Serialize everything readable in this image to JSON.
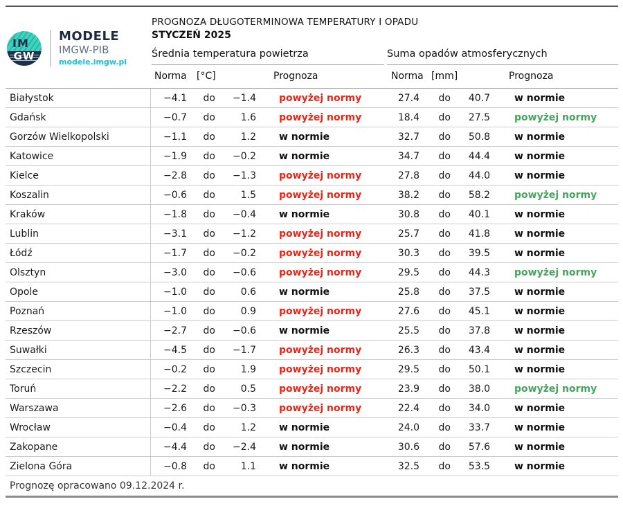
{
  "logo": {
    "circle_top": "IM",
    "circle_bottom": "GW",
    "brand": "MODELE",
    "subbrand": "IMGW-PIB",
    "url": "modele.imgw.pl"
  },
  "header": {
    "title": "PROGNOZA DŁUGOTERMINOWA TEMPERATURY I OPADU",
    "subtitle": "STYCZEŃ 2025",
    "temp_group": "Średnia temperatura powietrza",
    "precip_group": "Suma opadów atmosferycznych",
    "col_norma": "Norma",
    "col_temp_unit": "[°C]",
    "col_precip_unit": "[mm]",
    "col_prognoza": "Prognoza"
  },
  "labels": {
    "range_separator": "do",
    "above_norm": "powyżej normy",
    "in_norm": "w normie"
  },
  "colors": {
    "temp_above": "#ee2516",
    "precip_above": "#47a45e",
    "normal_forecast": "#111111",
    "teal": "#3ad6c1",
    "navy": "#1d2f49",
    "url_teal": "#14c4d9"
  },
  "table": {
    "rows": [
      {
        "city": "Białystok",
        "temp_min": "−4.1",
        "temp_max": "−1.4",
        "temp_forecast": "powyżej normy",
        "temp_status": "above",
        "precip_min": "27.4",
        "precip_max": "40.7",
        "precip_forecast": "w normie",
        "precip_status": "norm"
      },
      {
        "city": "Gdańsk",
        "temp_min": "−0.7",
        "temp_max": "1.6",
        "temp_forecast": "powyżej normy",
        "temp_status": "above",
        "precip_min": "18.4",
        "precip_max": "27.5",
        "precip_forecast": "powyżej normy",
        "precip_status": "above"
      },
      {
        "city": "Gorzów Wielkopolski",
        "temp_min": "−1.1",
        "temp_max": "1.2",
        "temp_forecast": "w normie",
        "temp_status": "norm",
        "precip_min": "32.7",
        "precip_max": "50.8",
        "precip_forecast": "w normie",
        "precip_status": "norm"
      },
      {
        "city": "Katowice",
        "temp_min": "−1.9",
        "temp_max": "−0.2",
        "temp_forecast": "w normie",
        "temp_status": "norm",
        "precip_min": "34.7",
        "precip_max": "44.4",
        "precip_forecast": "w normie",
        "precip_status": "norm"
      },
      {
        "city": "Kielce",
        "temp_min": "−2.8",
        "temp_max": "−1.3",
        "temp_forecast": "powyżej normy",
        "temp_status": "above",
        "precip_min": "27.8",
        "precip_max": "44.0",
        "precip_forecast": "w normie",
        "precip_status": "norm"
      },
      {
        "city": "Koszalin",
        "temp_min": "−0.6",
        "temp_max": "1.5",
        "temp_forecast": "powyżej normy",
        "temp_status": "above",
        "precip_min": "38.2",
        "precip_max": "58.2",
        "precip_forecast": "powyżej normy",
        "precip_status": "above"
      },
      {
        "city": "Kraków",
        "temp_min": "−1.8",
        "temp_max": "−0.4",
        "temp_forecast": "w normie",
        "temp_status": "norm",
        "precip_min": "30.8",
        "precip_max": "40.1",
        "precip_forecast": "w normie",
        "precip_status": "norm"
      },
      {
        "city": "Lublin",
        "temp_min": "−3.1",
        "temp_max": "−1.2",
        "temp_forecast": "powyżej normy",
        "temp_status": "above",
        "precip_min": "25.7",
        "precip_max": "41.8",
        "precip_forecast": "w normie",
        "precip_status": "norm"
      },
      {
        "city": "Łódź",
        "temp_min": "−1.7",
        "temp_max": "−0.2",
        "temp_forecast": "powyżej normy",
        "temp_status": "above",
        "precip_min": "30.3",
        "precip_max": "39.5",
        "precip_forecast": "w normie",
        "precip_status": "norm"
      },
      {
        "city": "Olsztyn",
        "temp_min": "−3.0",
        "temp_max": "−0.6",
        "temp_forecast": "powyżej normy",
        "temp_status": "above",
        "precip_min": "29.5",
        "precip_max": "44.3",
        "precip_forecast": "powyżej normy",
        "precip_status": "above"
      },
      {
        "city": "Opole",
        "temp_min": "−1.0",
        "temp_max": "0.6",
        "temp_forecast": "w normie",
        "temp_status": "norm",
        "precip_min": "25.8",
        "precip_max": "37.5",
        "precip_forecast": "w normie",
        "precip_status": "norm"
      },
      {
        "city": "Poznań",
        "temp_min": "−1.0",
        "temp_max": "0.9",
        "temp_forecast": "powyżej normy",
        "temp_status": "above",
        "precip_min": "27.6",
        "precip_max": "45.1",
        "precip_forecast": "w normie",
        "precip_status": "norm"
      },
      {
        "city": "Rzeszów",
        "temp_min": "−2.7",
        "temp_max": "−0.6",
        "temp_forecast": "w normie",
        "temp_status": "norm",
        "precip_min": "25.5",
        "precip_max": "37.8",
        "precip_forecast": "w normie",
        "precip_status": "norm"
      },
      {
        "city": "Suwałki",
        "temp_min": "−4.5",
        "temp_max": "−1.7",
        "temp_forecast": "powyżej normy",
        "temp_status": "above",
        "precip_min": "26.3",
        "precip_max": "43.4",
        "precip_forecast": "w normie",
        "precip_status": "norm"
      },
      {
        "city": "Szczecin",
        "temp_min": "−0.2",
        "temp_max": "1.9",
        "temp_forecast": "powyżej normy",
        "temp_status": "above",
        "precip_min": "29.5",
        "precip_max": "50.1",
        "precip_forecast": "w normie",
        "precip_status": "norm"
      },
      {
        "city": "Toruń",
        "temp_min": "−2.2",
        "temp_max": "0.5",
        "temp_forecast": "powyżej normy",
        "temp_status": "above",
        "precip_min": "23.9",
        "precip_max": "38.0",
        "precip_forecast": "powyżej normy",
        "precip_status": "above"
      },
      {
        "city": "Warszawa",
        "temp_min": "−2.6",
        "temp_max": "−0.3",
        "temp_forecast": "powyżej normy",
        "temp_status": "above",
        "precip_min": "22.4",
        "precip_max": "34.0",
        "precip_forecast": "w normie",
        "precip_status": "norm"
      },
      {
        "city": "Wrocław",
        "temp_min": "−0.4",
        "temp_max": "1.2",
        "temp_forecast": "w normie",
        "temp_status": "norm",
        "precip_min": "24.0",
        "precip_max": "33.7",
        "precip_forecast": "w normie",
        "precip_status": "norm"
      },
      {
        "city": "Zakopane",
        "temp_min": "−4.4",
        "temp_max": "−2.4",
        "temp_forecast": "w normie",
        "temp_status": "norm",
        "precip_min": "30.6",
        "precip_max": "57.6",
        "precip_forecast": "w normie",
        "precip_status": "norm"
      },
      {
        "city": "Zielona Góra",
        "temp_min": "−0.8",
        "temp_max": "1.1",
        "temp_forecast": "w normie",
        "temp_status": "norm",
        "precip_min": "32.5",
        "precip_max": "53.5",
        "precip_forecast": "w normie",
        "precip_status": "norm"
      }
    ]
  },
  "footer": {
    "note": "Prognozę opracowano 09.12.2024 r."
  }
}
